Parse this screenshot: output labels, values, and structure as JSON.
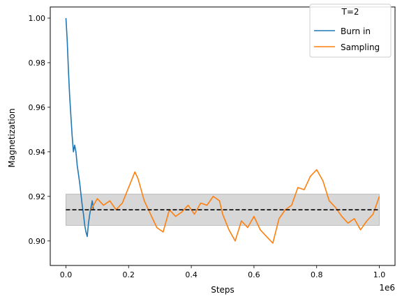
{
  "chart_data": {
    "type": "line",
    "xlabel": "Steps",
    "ylabel": "Magnetization",
    "x_offset_label": "1e6",
    "xlim": [
      -0.05,
      1.05
    ],
    "ylim": [
      0.889,
      1.005
    ],
    "x_ticks": [
      0.0,
      0.2,
      0.4,
      0.6,
      0.8,
      1.0
    ],
    "x_tick_labels": [
      "0.0",
      "0.2",
      "0.4",
      "0.6",
      "0.8",
      "1.0"
    ],
    "y_ticks": [
      0.9,
      0.92,
      0.94,
      0.96,
      0.98,
      1.0
    ],
    "y_tick_labels": [
      "0.90",
      "0.92",
      "0.94",
      "0.96",
      "0.98",
      "1.00"
    ],
    "grid": false,
    "legend": {
      "title": "T=2",
      "placement": "top-right",
      "entries": [
        "Burn in",
        "Sampling"
      ]
    },
    "mean_line": {
      "y": 0.914,
      "x_range": [
        0.0,
        1.0
      ],
      "style": "dashed",
      "color": "#000000"
    },
    "band": {
      "y_low": 0.907,
      "y_high": 0.921,
      "x_range": [
        0.0,
        1.0
      ],
      "color": "#d3d3d3"
    },
    "series": [
      {
        "name": "Burn in",
        "color": "#1f77b4",
        "x": [
          0.0,
          0.004,
          0.008,
          0.012,
          0.016,
          0.02,
          0.024,
          0.028,
          0.032,
          0.036,
          0.04,
          0.044,
          0.048,
          0.052,
          0.056,
          0.06,
          0.064,
          0.068,
          0.072,
          0.076,
          0.08,
          0.084,
          0.088
        ],
        "y": [
          1.0,
          0.99,
          0.977,
          0.965,
          0.956,
          0.947,
          0.94,
          0.943,
          0.94,
          0.934,
          0.93,
          0.926,
          0.921,
          0.916,
          0.912,
          0.907,
          0.904,
          0.902,
          0.908,
          0.912,
          0.915,
          0.918,
          0.914
        ]
      },
      {
        "name": "Sampling",
        "color": "#ff7f0e",
        "x": [
          0.08,
          0.1,
          0.12,
          0.14,
          0.16,
          0.18,
          0.2,
          0.22,
          0.23,
          0.25,
          0.27,
          0.29,
          0.31,
          0.33,
          0.35,
          0.37,
          0.39,
          0.41,
          0.43,
          0.45,
          0.47,
          0.49,
          0.5,
          0.52,
          0.54,
          0.56,
          0.58,
          0.6,
          0.62,
          0.64,
          0.66,
          0.68,
          0.7,
          0.72,
          0.74,
          0.76,
          0.78,
          0.8,
          0.82,
          0.84,
          0.86,
          0.88,
          0.9,
          0.92,
          0.94,
          0.96,
          0.98,
          1.0
        ],
        "y": [
          0.914,
          0.919,
          0.916,
          0.918,
          0.914,
          0.917,
          0.924,
          0.931,
          0.928,
          0.918,
          0.912,
          0.906,
          0.904,
          0.914,
          0.911,
          0.913,
          0.916,
          0.912,
          0.917,
          0.916,
          0.92,
          0.918,
          0.912,
          0.905,
          0.9,
          0.909,
          0.906,
          0.911,
          0.905,
          0.902,
          0.899,
          0.91,
          0.914,
          0.916,
          0.924,
          0.923,
          0.929,
          0.932,
          0.927,
          0.918,
          0.915,
          0.911,
          0.908,
          0.91,
          0.905,
          0.909,
          0.912,
          0.92
        ]
      }
    ]
  }
}
